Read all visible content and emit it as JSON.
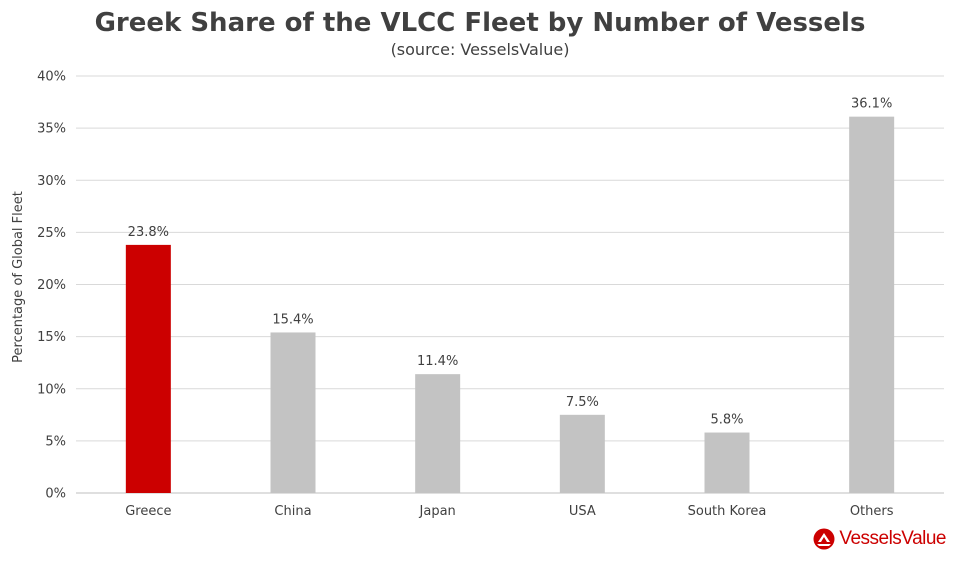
{
  "chart_data": {
    "type": "bar",
    "title": "Greek Share of the VLCC Fleet by Number of Vessels",
    "subtitle": "(source: VesselsValue)",
    "xlabel": "",
    "ylabel": "Percentage of Global Fleet",
    "ylim": [
      0,
      40
    ],
    "yticks": [
      0,
      5,
      10,
      15,
      20,
      25,
      30,
      35,
      40
    ],
    "ytick_labels": [
      "0%",
      "5%",
      "10%",
      "15%",
      "20%",
      "25%",
      "30%",
      "35%",
      "40%"
    ],
    "grid": true,
    "categories": [
      "Greece",
      "China",
      "Japan",
      "USA",
      "South Korea",
      "Others"
    ],
    "values": [
      23.8,
      15.4,
      11.4,
      7.5,
      5.8,
      36.1
    ],
    "data_labels": [
      "23.8%",
      "15.4%",
      "11.4%",
      "7.5%",
      "5.8%",
      "36.1%"
    ],
    "colors": [
      "#cc0000",
      "#c3c3c3",
      "#c3c3c3",
      "#c3c3c3",
      "#c3c3c3",
      "#c3c3c3"
    ]
  },
  "colors": {
    "highlight": "#cc0000",
    "bar": "#c3c3c3",
    "grid": "#d9d9d9",
    "text": "#404040"
  },
  "brand": {
    "name": "VesselsValue",
    "logo_icon": "vesselsvalue-logo-icon"
  }
}
